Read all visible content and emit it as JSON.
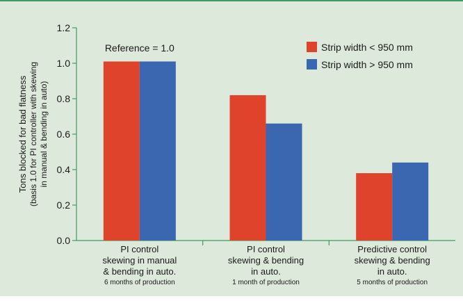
{
  "theme": {
    "background": "#dde9da",
    "frame_line": "#3f9a62",
    "axis_color": "#3f9a62"
  },
  "chart_data": {
    "type": "bar",
    "title": "",
    "ylabel_lines": [
      "Tons blocked for bad flatness",
      "(basis 1.0 for PI controller with skewing",
      "in manual & bending in auto)"
    ],
    "ylim": [
      0,
      1.2
    ],
    "yticks": [
      "0.0",
      "0.2",
      "0.4",
      "0.6",
      "0.8",
      "1.0",
      "1.2"
    ],
    "grid": false,
    "legend_position": "top-right",
    "annotation": "Reference = 1.0",
    "categories": [
      {
        "lines": [
          "PI control",
          "skewing in manual",
          "& bending in auto."
        ],
        "note": "6 months of production"
      },
      {
        "lines": [
          "PI control",
          "skewing & bending",
          "in auto."
        ],
        "note": "1 month of production"
      },
      {
        "lines": [
          "Predictive control",
          "skewing & bending",
          "in auto."
        ],
        "note": "5 months of production"
      }
    ],
    "series": [
      {
        "name": "Strip width < 950 mm",
        "color": "#e0432b",
        "values": [
          1.01,
          0.82,
          0.38
        ]
      },
      {
        "name": "Strip width > 950 mm",
        "color": "#3b66b0",
        "values": [
          1.01,
          0.66,
          0.44
        ]
      }
    ]
  }
}
